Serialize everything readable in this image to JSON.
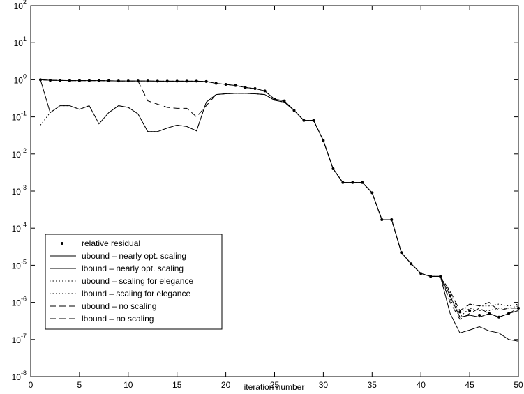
{
  "chart_data": {
    "type": "line",
    "yscale": "log",
    "xlabel": "iteration number",
    "x": [
      1,
      2,
      3,
      4,
      5,
      6,
      7,
      8,
      9,
      10,
      11,
      12,
      13,
      14,
      15,
      16,
      17,
      18,
      19,
      20,
      21,
      22,
      23,
      24,
      25,
      26,
      27,
      28,
      29,
      30,
      31,
      32,
      33,
      34,
      35,
      36,
      37,
      38,
      39,
      40,
      41,
      42,
      43,
      44,
      45,
      46,
      47,
      48,
      49,
      50
    ],
    "xlim": [
      0,
      50
    ],
    "xticks": [
      0,
      5,
      10,
      15,
      20,
      25,
      30,
      35,
      40,
      45,
      50
    ],
    "ylim": [
      1e-08,
      100
    ],
    "yticks": [
      {
        "value": 1e-08,
        "label": "10",
        "exponent": "-8"
      },
      {
        "value": 1e-07,
        "label": "10",
        "exponent": "-7"
      },
      {
        "value": 1e-06,
        "label": "10",
        "exponent": "-6"
      },
      {
        "value": 1e-05,
        "label": "10",
        "exponent": "-5"
      },
      {
        "value": 0.0001,
        "label": "10",
        "exponent": "-4"
      },
      {
        "value": 0.001,
        "label": "10",
        "exponent": "-3"
      },
      {
        "value": 0.01,
        "label": "10",
        "exponent": "-2"
      },
      {
        "value": 0.1,
        "label": "10",
        "exponent": "-1"
      },
      {
        "value": 1,
        "label": "10",
        "exponent": "0"
      },
      {
        "value": 10,
        "label": "10",
        "exponent": "1"
      },
      {
        "value": 100,
        "label": "10",
        "exponent": "2"
      }
    ],
    "legend": "lower left",
    "series": [
      {
        "name": "relative residual",
        "color": "#000000",
        "style": "dot",
        "values": [
          1.0,
          0.97,
          0.96,
          0.95,
          0.95,
          0.95,
          0.95,
          0.94,
          0.93,
          0.93,
          0.93,
          0.93,
          0.92,
          0.92,
          0.92,
          0.92,
          0.92,
          0.9,
          0.8,
          0.75,
          0.7,
          0.62,
          0.58,
          0.5,
          0.3,
          0.27,
          0.15,
          0.08,
          0.08,
          0.023,
          0.004,
          0.0017,
          0.0017,
          0.0017,
          0.0009,
          0.00017,
          0.00017,
          2.2e-05,
          1.1e-05,
          6e-06,
          5e-06,
          5e-06,
          1.5e-06,
          5.5e-07,
          6e-07,
          4.5e-07,
          5e-07,
          4e-07,
          5e-07,
          7e-07
        ]
      },
      {
        "name": "ubound – nearly opt. scaling",
        "color": "#000000",
        "style": "solid",
        "values": [
          1.0,
          0.97,
          0.96,
          0.95,
          0.95,
          0.95,
          0.95,
          0.94,
          0.93,
          0.93,
          0.93,
          0.93,
          0.92,
          0.92,
          0.92,
          0.92,
          0.92,
          0.9,
          0.8,
          0.75,
          0.7,
          0.62,
          0.58,
          0.5,
          0.3,
          0.27,
          0.15,
          0.08,
          0.08,
          0.023,
          0.004,
          0.0017,
          0.0017,
          0.0017,
          0.0009,
          0.00017,
          0.00017,
          2.2e-05,
          1.1e-05,
          6e-06,
          5e-06,
          5e-06,
          1.5e-06,
          4e-07,
          4.5e-07,
          4e-07,
          5e-07,
          4e-07,
          5e-07,
          6e-07
        ]
      },
      {
        "name": "lbound – nearly opt. scaling",
        "color": "#000000",
        "style": "solid",
        "values": [
          1.0,
          0.13,
          0.2,
          0.2,
          0.16,
          0.2,
          0.065,
          0.13,
          0.2,
          0.18,
          0.12,
          0.04,
          0.04,
          0.05,
          0.06,
          0.055,
          0.042,
          0.25,
          0.4,
          0.42,
          0.43,
          0.43,
          0.42,
          0.4,
          0.28,
          0.25,
          0.15,
          0.08,
          0.08,
          0.023,
          0.004,
          0.0017,
          0.0017,
          0.0017,
          0.0009,
          0.00017,
          0.00017,
          2.2e-05,
          1.1e-05,
          6e-06,
          5e-06,
          5e-06,
          5e-07,
          1.5e-07,
          1.8e-07,
          2.2e-07,
          1.7e-07,
          1.5e-07,
          1e-07,
          9e-08
        ]
      },
      {
        "name": "ubound – scaling for elegance",
        "color": "#000000",
        "style": "dotted",
        "values": [
          1.0,
          0.97,
          0.96,
          0.95,
          0.95,
          0.95,
          0.95,
          0.94,
          0.93,
          0.93,
          0.93,
          0.93,
          0.92,
          0.92,
          0.92,
          0.92,
          0.92,
          0.9,
          0.8,
          0.75,
          0.7,
          0.62,
          0.58,
          0.5,
          0.3,
          0.27,
          0.15,
          0.08,
          0.08,
          0.023,
          0.004,
          0.0017,
          0.0017,
          0.0017,
          0.0009,
          0.00017,
          0.00017,
          2.2e-05,
          1.1e-05,
          6e-06,
          5e-06,
          5e-06,
          1.8e-06,
          5e-07,
          9e-07,
          8e-07,
          8e-07,
          9e-07,
          8e-07,
          9e-07
        ]
      },
      {
        "name": "lbound – scaling for elegance",
        "color": "#000000",
        "style": "dotted",
        "values": [
          0.06,
          0.13,
          0.2,
          0.2,
          0.16,
          0.2,
          0.065,
          0.13,
          0.2,
          0.18,
          0.12,
          0.04,
          0.04,
          0.05,
          0.06,
          0.055,
          0.042,
          0.25,
          0.4,
          0.42,
          0.43,
          0.43,
          0.42,
          0.4,
          0.28,
          0.25,
          0.15,
          0.08,
          0.08,
          0.023,
          0.004,
          0.0017,
          0.0017,
          0.0017,
          0.0009,
          0.00017,
          0.00017,
          2.2e-05,
          1.1e-05,
          6e-06,
          5e-06,
          5e-06,
          1.2e-06,
          4e-07,
          7e-07,
          6e-07,
          6e-07,
          7e-07,
          7e-07,
          8e-07
        ]
      },
      {
        "name": "ubound – no scaling",
        "color": "#000000",
        "style": "dashed",
        "values": [
          1.0,
          0.97,
          0.96,
          0.95,
          0.95,
          0.95,
          0.95,
          0.94,
          0.93,
          0.93,
          0.93,
          0.93,
          0.92,
          0.92,
          0.92,
          0.92,
          0.92,
          0.9,
          0.8,
          0.75,
          0.7,
          0.62,
          0.58,
          0.5,
          0.3,
          0.27,
          0.15,
          0.08,
          0.08,
          0.023,
          0.004,
          0.0017,
          0.0017,
          0.0017,
          0.0009,
          0.00017,
          0.00017,
          2.2e-05,
          1.1e-05,
          6e-06,
          5e-06,
          5e-06,
          2e-06,
          6e-07,
          9e-07,
          8e-07,
          1e-06,
          6e-07,
          7e-07,
          7e-07
        ]
      },
      {
        "name": "lbound – no scaling",
        "color": "#000000",
        "style": "dashed",
        "values": [
          1.0,
          0.97,
          0.96,
          0.95,
          0.95,
          0.95,
          0.95,
          0.94,
          0.93,
          0.93,
          0.93,
          0.27,
          0.22,
          0.18,
          0.17,
          0.17,
          0.1,
          0.2,
          0.4,
          0.42,
          0.43,
          0.43,
          0.42,
          0.4,
          0.28,
          0.25,
          0.15,
          0.08,
          0.08,
          0.023,
          0.004,
          0.0017,
          0.0017,
          0.0017,
          0.0009,
          0.00017,
          0.00017,
          2.2e-05,
          1.1e-05,
          6e-06,
          5e-06,
          5e-06,
          1e-06,
          3.5e-07,
          5e-07,
          7e-07,
          5e-07,
          4e-07,
          5e-07,
          7e-07
        ]
      }
    ]
  }
}
